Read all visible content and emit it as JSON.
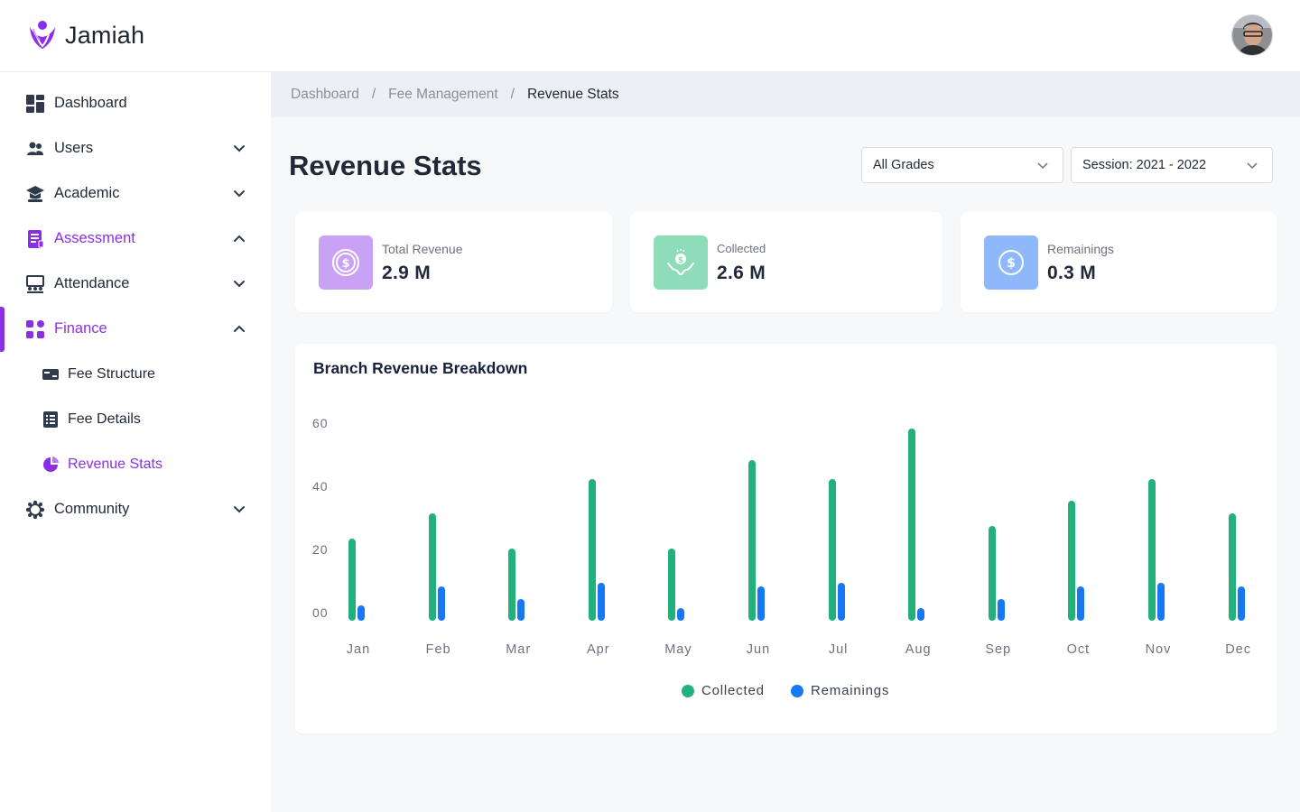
{
  "app": {
    "name": "Jamiah"
  },
  "colors": {
    "accent": "#8b2fe6",
    "collected": "#22b07d",
    "remainings": "#1877f2"
  },
  "sidebar": {
    "items": [
      {
        "label": "Dashboard",
        "icon": "dashboard-icon",
        "has_chevron": false
      },
      {
        "label": "Users",
        "icon": "users-icon",
        "has_chevron": true,
        "expanded": false
      },
      {
        "label": "Academic",
        "icon": "graduation-cap-icon",
        "has_chevron": true,
        "expanded": false
      },
      {
        "label": "Assessment",
        "icon": "clipboard-icon",
        "has_chevron": true,
        "expanded": true
      },
      {
        "label": "Attendance",
        "icon": "presentation-icon",
        "has_chevron": true,
        "expanded": false
      },
      {
        "label": "Finance",
        "icon": "grid-icon",
        "has_chevron": true,
        "expanded": true,
        "active": true
      },
      {
        "label": "Community",
        "icon": "community-icon",
        "has_chevron": true,
        "expanded": false
      }
    ],
    "finance_sub": [
      {
        "label": "Fee Structure",
        "icon": "card-icon"
      },
      {
        "label": "Fee Details",
        "icon": "list-icon"
      },
      {
        "label": "Revenue Stats",
        "icon": "pie-chart-icon",
        "active": true
      }
    ]
  },
  "breadcrumb": {
    "items": [
      "Dashboard",
      "Fee Management"
    ],
    "current": "Revenue Stats",
    "separator": "/"
  },
  "page": {
    "title": "Revenue Stats"
  },
  "filters": {
    "grade": "All Grades",
    "session": "Session: 2021 - 2022"
  },
  "stats": [
    {
      "label": "Total Revenue",
      "value": "2.9 M",
      "icon": "dollar-coin-icon",
      "bg": "#c9a2f5"
    },
    {
      "label": "Collected",
      "value": "2.6 M",
      "icon": "hands-money-icon",
      "bg": "#8fdcb8"
    },
    {
      "label": "Remainings",
      "value": "0.3 M",
      "icon": "dollar-coin-icon",
      "bg": "#8fb8fb"
    }
  ],
  "chart_data": {
    "type": "bar",
    "title": "Branch Revenue Breakdown",
    "categories": [
      "Jan",
      "Feb",
      "Mar",
      "Apr",
      "May",
      "Jun",
      "Jul",
      "Aug",
      "Sep",
      "Oct",
      "Nov",
      "Dec"
    ],
    "series": [
      {
        "name": "Collected",
        "values": [
          26,
          34,
          23,
          45,
          23,
          51,
          45,
          61,
          30,
          38,
          45,
          34
        ]
      },
      {
        "name": "Remainings",
        "values": [
          5,
          11,
          7,
          12,
          4,
          11,
          12,
          4,
          7,
          11,
          12,
          11
        ]
      }
    ],
    "yticks": [
      "60",
      "40",
      "20",
      "00"
    ],
    "ylim": [
      0,
      63
    ],
    "legend": "bottom-center",
    "grid": false
  }
}
